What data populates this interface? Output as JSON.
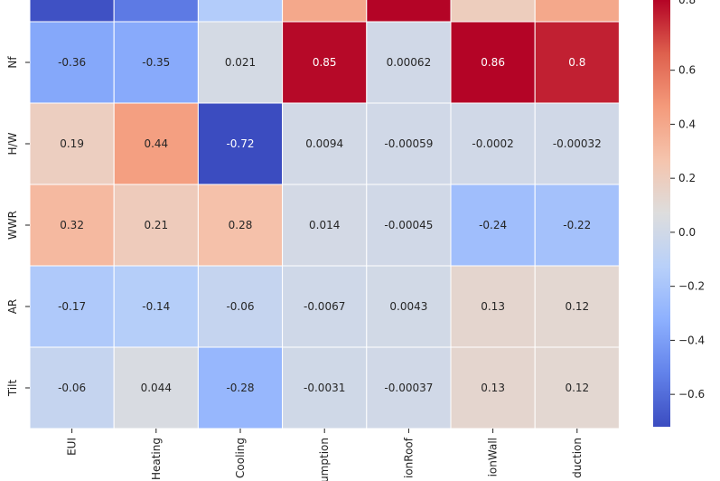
{
  "chart_data": {
    "type": "heatmap",
    "title": "",
    "colormap": "coolwarm",
    "vmin": -0.72,
    "vmax": 0.86,
    "rows": [
      "",
      "Nf",
      "H/W",
      "WWR",
      "AR",
      "Tilt"
    ],
    "columns": [
      "EUI",
      "Heating",
      "Cooling",
      "umption",
      "ionRoof",
      "ionWall",
      "duction"
    ],
    "values": [
      [
        -0.7,
        -0.55,
        -0.15,
        0.4,
        0.86,
        0.2,
        0.4
      ],
      [
        -0.36,
        -0.35,
        0.021,
        0.85,
        0.00062,
        0.86,
        0.8
      ],
      [
        0.19,
        0.44,
        -0.72,
        0.0094,
        -0.00059,
        -0.0002,
        -0.00032
      ],
      [
        0.32,
        0.21,
        0.28,
        0.014,
        -0.00045,
        -0.24,
        -0.22
      ],
      [
        -0.17,
        -0.14,
        -0.06,
        -0.0067,
        0.0043,
        0.13,
        0.12
      ],
      [
        -0.06,
        0.044,
        -0.28,
        -0.0031,
        -0.00037,
        0.13,
        0.12
      ]
    ],
    "labels": [
      [
        "",
        "",
        "",
        "",
        "",
        "",
        ""
      ],
      [
        "-0.36",
        "-0.35",
        "0.021",
        "0.85",
        "0.00062",
        "0.86",
        "0.8"
      ],
      [
        "0.19",
        "0.44",
        "-0.72",
        "0.0094",
        "-0.00059",
        "-0.0002",
        "-0.00032"
      ],
      [
        "0.32",
        "0.21",
        "0.28",
        "0.014",
        "-0.00045",
        "-0.24",
        "-0.22"
      ],
      [
        "-0.17",
        "-0.14",
        "-0.06",
        "-0.0067",
        "0.0043",
        "0.13",
        "0.12"
      ],
      [
        "-0.06",
        "0.044",
        "-0.28",
        "-0.0031",
        "-0.00037",
        "0.13",
        "0.12"
      ]
    ],
    "colorbar": {
      "ticks": [
        0.6,
        0.4,
        0.2,
        0.0,
        -0.2,
        -0.4,
        -0.6
      ],
      "tick_labels": [
        "0.6",
        "0.4",
        "0.2",
        "0.0",
        "−0.2",
        "−0.4",
        "−0.6"
      ],
      "top_label": "0.8"
    }
  }
}
